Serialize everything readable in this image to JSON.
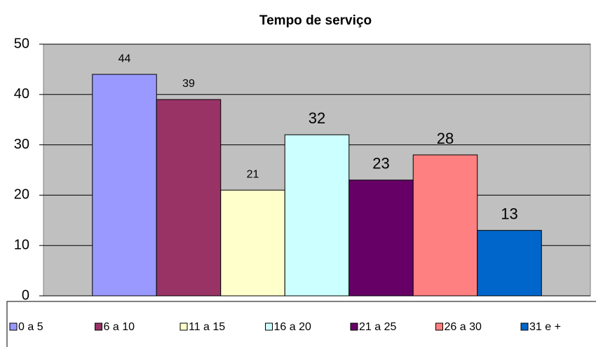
{
  "chart_data": {
    "type": "bar",
    "title": "Tempo de serviço",
    "series": [
      {
        "name": "0 a 5",
        "color": "#9999ff",
        "values": [
          44
        ]
      },
      {
        "name": "6 a 10",
        "color": "#993366",
        "values": [
          39
        ]
      },
      {
        "name": "11 a 15",
        "color": "#ffffcc",
        "values": [
          21
        ]
      },
      {
        "name": "16 a 20",
        "color": "#ccffff",
        "values": [
          32
        ]
      },
      {
        "name": "21 a 25",
        "color": "#660066",
        "values": [
          23
        ]
      },
      {
        "name": "26 a 30",
        "color": "#ff8080",
        "values": [
          28
        ]
      },
      {
        "name": "31 e +",
        "color": "#0066cc",
        "values": [
          13
        ]
      }
    ],
    "ylim": [
      0,
      50
    ],
    "yticks": [
      0,
      10,
      20,
      30,
      40,
      50
    ],
    "grid": true,
    "legend": "bottom"
  }
}
